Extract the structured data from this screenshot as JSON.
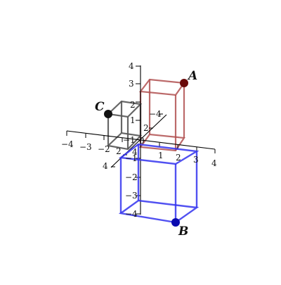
{
  "axes": {
    "x_ticks": [
      "−4",
      "−3",
      "−2",
      "−1",
      "0",
      "1",
      "2",
      "3",
      "4"
    ],
    "y_ticks": [
      "−4",
      "2",
      "4"
    ],
    "z_ticks": [
      "4",
      "3",
      "2",
      "1",
      "−1",
      "−2",
      "−3",
      "−4"
    ],
    "depth_ticks": [
      "2",
      "4"
    ]
  },
  "boxes": [
    {
      "name": "box-red",
      "color": "#b05050"
    },
    {
      "name": "box-gray",
      "color": "#555555"
    },
    {
      "name": "box-blue",
      "color": "#3333ee"
    }
  ],
  "points": [
    {
      "label": "A",
      "color": "#6a0a0a"
    },
    {
      "label": "B",
      "color": "#0a0ab0"
    },
    {
      "label": "C",
      "color": "#111111"
    }
  ]
}
